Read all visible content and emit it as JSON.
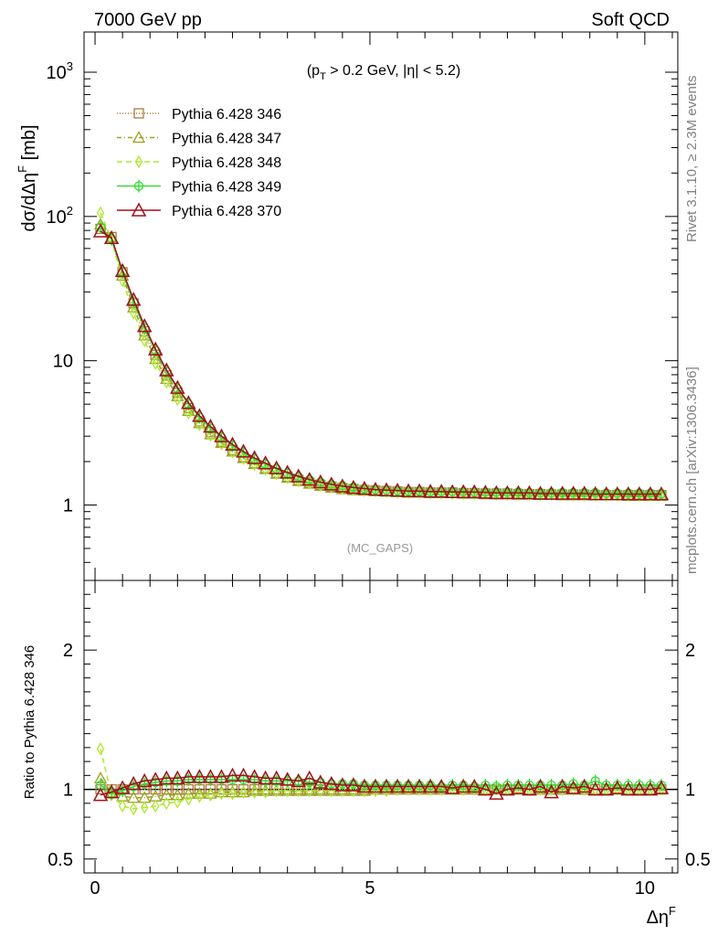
{
  "header": {
    "left": "7000 GeV pp",
    "right": "Soft QCD"
  },
  "side": {
    "rivet": "Rivet 3.1.10, ≥ 2.3M events",
    "mcplots": "mcplots.cern.ch [arXiv:1306.3436]"
  },
  "main_plot": {
    "ylabel_parts": [
      "dσ/dΔη",
      "F",
      " [mb]"
    ],
    "annotation_parts": [
      "(p",
      "T",
      " > 0.2 GeV, |η| < 5.2)"
    ],
    "analysis": "(MC_GAPS)",
    "yticks": [
      {
        "value": 1000,
        "label": "10",
        "sup": "3"
      },
      {
        "value": 100,
        "label": "10",
        "sup": "2"
      },
      {
        "value": 10,
        "label": "10",
        "sup": ""
      },
      {
        "value": 1,
        "label": "1",
        "sup": ""
      }
    ]
  },
  "ratio_plot": {
    "ylabel": "Ratio to Pythia 6.428 346",
    "yticks_left": [
      "2",
      "1",
      "0.5"
    ],
    "yticks_right": [
      "2",
      "1",
      "0.5"
    ],
    "ytick_values": [
      2,
      1,
      0.5
    ]
  },
  "xaxis": {
    "label": "Δη",
    "label_sup": "F",
    "ticks": [
      "0",
      "5",
      "10"
    ]
  },
  "colors": {
    "s346": "#b07a3c",
    "s347": "#9aa020",
    "s348": "#aee830",
    "s349": "#33dd33",
    "s370": "#a0101e"
  },
  "chart_data": {
    "type": "line",
    "log_y_main": true,
    "xlim": [
      -0.2,
      10.6
    ],
    "ylim_main": [
      0.3,
      1900
    ],
    "ylim_ratio": [
      0.4,
      2.5
    ],
    "legend_position": "top-left",
    "x": [
      0.1,
      0.3,
      0.5,
      0.7,
      0.9,
      1.1,
      1.3,
      1.5,
      1.7,
      1.9,
      2.1,
      2.3,
      2.5,
      2.7,
      2.9,
      3.1,
      3.3,
      3.5,
      3.7,
      3.9,
      4.1,
      4.3,
      4.5,
      4.7,
      4.9,
      5.1,
      5.3,
      5.5,
      5.7,
      5.9,
      6.1,
      6.3,
      6.5,
      6.7,
      6.9,
      7.1,
      7.3,
      7.5,
      7.7,
      7.9,
      8.1,
      8.3,
      8.5,
      8.7,
      8.9,
      9.1,
      9.3,
      9.5,
      9.7,
      9.9,
      10.1,
      10.3
    ],
    "series": [
      {
        "name": "Pythia 6.428 346",
        "marker": "square",
        "dash": "1,2",
        "color_key": "s346",
        "values": [
          82,
          72,
          41,
          25,
          16,
          11,
          7.9,
          6.0,
          4.7,
          3.8,
          3.2,
          2.75,
          2.4,
          2.15,
          1.95,
          1.8,
          1.67,
          1.57,
          1.49,
          1.43,
          1.38,
          1.34,
          1.31,
          1.29,
          1.27,
          1.26,
          1.25,
          1.24,
          1.23,
          1.23,
          1.22,
          1.22,
          1.22,
          1.21,
          1.21,
          1.2,
          1.2,
          1.2,
          1.19,
          1.19,
          1.19,
          1.18,
          1.18,
          1.18,
          1.18,
          1.17,
          1.17,
          1.17,
          1.17,
          1.17,
          1.17,
          1.17
        ],
        "ratio": [
          1,
          1,
          1,
          1,
          1,
          1,
          1,
          1,
          1,
          1,
          1,
          1,
          1,
          1,
          1,
          1,
          1,
          1,
          1,
          1,
          1,
          1,
          1,
          1,
          1,
          1,
          1,
          1,
          1,
          1,
          1,
          1,
          1,
          1,
          1,
          1,
          1,
          1,
          1,
          1,
          1,
          1,
          1,
          1,
          1,
          1,
          1,
          1,
          1,
          1,
          1,
          1
        ]
      },
      {
        "name": "Pythia 6.428 347",
        "marker": "triangle",
        "dash": "5,3,1,3",
        "color_key": "s347",
        "values": [
          88,
          70,
          39,
          23.5,
          15.0,
          10.3,
          7.5,
          5.7,
          4.5,
          3.7,
          3.1,
          2.7,
          2.35,
          2.12,
          1.93,
          1.78,
          1.65,
          1.55,
          1.47,
          1.41,
          1.36,
          1.32,
          1.29,
          1.27,
          1.26,
          1.25,
          1.24,
          1.23,
          1.22,
          1.22,
          1.21,
          1.21,
          1.21,
          1.2,
          1.2,
          1.19,
          1.19,
          1.19,
          1.18,
          1.18,
          1.18,
          1.18,
          1.17,
          1.17,
          1.17,
          1.17,
          1.17,
          1.17,
          1.16,
          1.16,
          1.16,
          1.16
        ],
        "ratio": [
          1.08,
          0.98,
          0.95,
          0.94,
          0.94,
          0.95,
          0.96,
          0.96,
          0.97,
          0.97,
          0.97,
          0.98,
          0.98,
          0.98,
          0.99,
          0.99,
          0.99,
          0.99,
          0.99,
          0.99,
          0.99,
          0.99,
          0.99,
          0.99,
          0.99,
          1.0,
          1.0,
          1.0,
          1.0,
          1.0,
          1.0,
          1.0,
          1.0,
          1.0,
          1.0,
          1.0,
          1.0,
          1.0,
          1.0,
          1.0,
          1.0,
          1.0,
          1.0,
          1.0,
          1.0,
          1.0,
          1.0,
          1.0,
          1.0,
          1.0,
          1.0,
          1.0
        ]
      },
      {
        "name": "Pythia 6.428 348",
        "marker": "diamond",
        "dash": "6,4",
        "color_key": "s348",
        "values": [
          106,
          69,
          36,
          21.5,
          13.8,
          9.6,
          7.1,
          5.4,
          4.35,
          3.6,
          3.05,
          2.65,
          2.33,
          2.1,
          1.91,
          1.77,
          1.65,
          1.55,
          1.47,
          1.41,
          1.37,
          1.33,
          1.3,
          1.28,
          1.26,
          1.25,
          1.24,
          1.23,
          1.22,
          1.22,
          1.21,
          1.21,
          1.21,
          1.2,
          1.2,
          1.2,
          1.19,
          1.19,
          1.19,
          1.18,
          1.18,
          1.18,
          1.18,
          1.17,
          1.17,
          1.17,
          1.17,
          1.17,
          1.17,
          1.17,
          1.17,
          1.17
        ],
        "ratio": [
          1.29,
          0.96,
          0.88,
          0.86,
          0.87,
          0.88,
          0.9,
          0.91,
          0.93,
          0.95,
          0.96,
          0.97,
          0.97,
          0.98,
          0.98,
          0.98,
          0.99,
          0.99,
          0.99,
          0.99,
          0.99,
          0.99,
          0.99,
          0.99,
          0.99,
          0.99,
          0.99,
          1.0,
          1.0,
          1.0,
          1.0,
          1.0,
          1.0,
          1.0,
          1.0,
          1.0,
          1.0,
          1.0,
          1.0,
          1.0,
          1.0,
          1.0,
          1.0,
          1.0,
          1.0,
          1.0,
          1.0,
          1.0,
          1.0,
          1.0,
          1.0,
          1.0
        ]
      },
      {
        "name": "Pythia 6.428 349",
        "marker": "circle",
        "dash": "",
        "color_key": "s349",
        "values": [
          84,
          70,
          41,
          25.5,
          16.8,
          11.8,
          8.4,
          6.4,
          5.0,
          4.05,
          3.4,
          2.95,
          2.58,
          2.3,
          2.08,
          1.92,
          1.78,
          1.66,
          1.57,
          1.5,
          1.44,
          1.39,
          1.36,
          1.33,
          1.3,
          1.28,
          1.27,
          1.26,
          1.25,
          1.25,
          1.24,
          1.24,
          1.24,
          1.24,
          1.23,
          1.23,
          1.23,
          1.23,
          1.23,
          1.22,
          1.22,
          1.22,
          1.22,
          1.22,
          1.22,
          1.22,
          1.21,
          1.21,
          1.21,
          1.21,
          1.21,
          1.2
        ],
        "ratio": [
          1.03,
          0.97,
          0.99,
          1.02,
          1.04,
          1.05,
          1.06,
          1.06,
          1.07,
          1.07,
          1.07,
          1.07,
          1.07,
          1.07,
          1.07,
          1.06,
          1.06,
          1.06,
          1.06,
          1.05,
          1.05,
          1.04,
          1.04,
          1.04,
          1.03,
          1.03,
          1.03,
          1.03,
          1.03,
          1.03,
          1.03,
          1.02,
          1.03,
          1.03,
          1.02,
          1.03,
          1.02,
          1.03,
          1.03,
          1.03,
          1.03,
          1.03,
          1.03,
          1.04,
          1.03,
          1.06,
          1.03,
          1.03,
          1.03,
          1.03,
          1.03,
          1.03
        ]
      },
      {
        "name": "Pythia 6.428 370",
        "marker": "triangle-big",
        "dash": "",
        "color_key": "s370",
        "values": [
          79,
          71,
          42,
          26.5,
          17.4,
          12.0,
          8.6,
          6.5,
          5.1,
          4.15,
          3.5,
          3.0,
          2.63,
          2.35,
          2.12,
          1.95,
          1.8,
          1.68,
          1.58,
          1.5,
          1.44,
          1.39,
          1.35,
          1.32,
          1.3,
          1.28,
          1.27,
          1.26,
          1.25,
          1.25,
          1.24,
          1.24,
          1.23,
          1.23,
          1.23,
          1.22,
          1.21,
          1.21,
          1.21,
          1.21,
          1.2,
          1.2,
          1.2,
          1.2,
          1.2,
          1.19,
          1.19,
          1.19,
          1.19,
          1.19,
          1.19,
          1.19
        ],
        "ratio": [
          0.96,
          0.98,
          1.01,
          1.04,
          1.06,
          1.07,
          1.08,
          1.08,
          1.09,
          1.09,
          1.09,
          1.09,
          1.1,
          1.1,
          1.09,
          1.08,
          1.08,
          1.07,
          1.06,
          1.08,
          1.05,
          1.04,
          1.03,
          1.03,
          1.02,
          1.02,
          1.02,
          1.02,
          1.02,
          1.02,
          1.02,
          1.02,
          1.01,
          1.02,
          1.02,
          1.0,
          0.97,
          1.0,
          1.01,
          1.0,
          1.02,
          0.98,
          1.02,
          1.01,
          1.02,
          1.0,
          1.0,
          1.01,
          1.0,
          1.0,
          1.0,
          1.01
        ]
      }
    ]
  }
}
